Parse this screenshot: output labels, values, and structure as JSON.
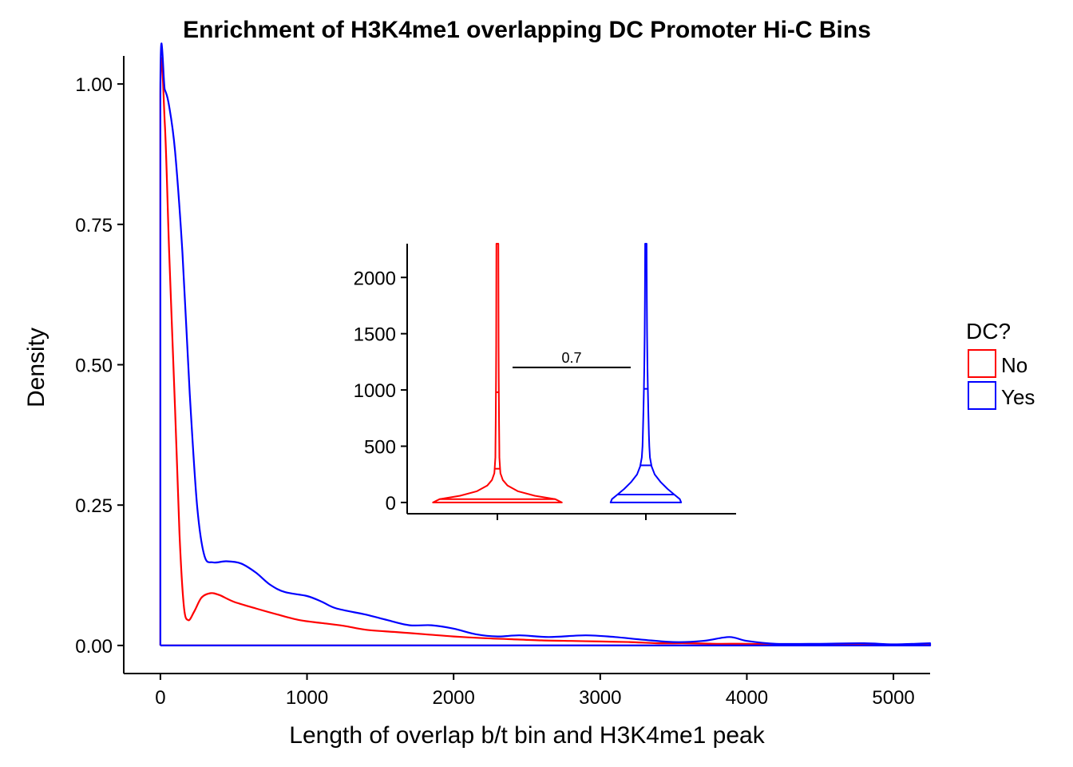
{
  "chart_data": {
    "type": "density",
    "title": "Enrichment of H3K4me1 overlapping DC Promoter Hi-C Bins",
    "xlabel": "Length of overlap b/t bin and H3K4me1 peak",
    "ylabel": "Density",
    "xlim": [
      -250,
      5250
    ],
    "ylim": [
      -0.05,
      1.05
    ],
    "x_ticks": [
      "0",
      "1000",
      "2000",
      "3000",
      "4000",
      "5000"
    ],
    "y_ticks": [
      "0.00",
      "0.25",
      "0.50",
      "0.75",
      "1.00"
    ],
    "grid": false,
    "legend": {
      "title": "DC?",
      "position": "right",
      "entries": [
        {
          "label": "No",
          "color": "#ff0000"
        },
        {
          "label": "Yes",
          "color": "#0000ff"
        }
      ]
    },
    "series": [
      {
        "name": "No",
        "color": "#ff0000",
        "points": [
          [
            0,
            0
          ],
          [
            0,
            0.98
          ],
          [
            30,
            0.93
          ],
          [
            60,
            0.7
          ],
          [
            100,
            0.42
          ],
          [
            130,
            0.2
          ],
          [
            160,
            0.07
          ],
          [
            190,
            0.045
          ],
          [
            230,
            0.06
          ],
          [
            280,
            0.085
          ],
          [
            340,
            0.093
          ],
          [
            400,
            0.09
          ],
          [
            500,
            0.078
          ],
          [
            650,
            0.066
          ],
          [
            800,
            0.055
          ],
          [
            950,
            0.045
          ],
          [
            1100,
            0.04
          ],
          [
            1250,
            0.035
          ],
          [
            1400,
            0.028
          ],
          [
            1600,
            0.024
          ],
          [
            1800,
            0.02
          ],
          [
            2000,
            0.016
          ],
          [
            2200,
            0.013
          ],
          [
            2400,
            0.011
          ],
          [
            2600,
            0.009
          ],
          [
            2800,
            0.008
          ],
          [
            3000,
            0.007
          ],
          [
            3200,
            0.006
          ],
          [
            3400,
            0.004
          ],
          [
            3600,
            0.004
          ],
          [
            3800,
            0.003
          ],
          [
            4000,
            0.003
          ],
          [
            4200,
            0.002
          ],
          [
            4600,
            0.002
          ],
          [
            5000,
            0.001
          ],
          [
            5250,
            0.001
          ]
        ]
      },
      {
        "name": "Yes",
        "color": "#0000ff",
        "points": [
          [
            0,
            0
          ],
          [
            0,
            1.0
          ],
          [
            30,
            0.99
          ],
          [
            60,
            0.96
          ],
          [
            100,
            0.88
          ],
          [
            150,
            0.7
          ],
          [
            200,
            0.45
          ],
          [
            250,
            0.25
          ],
          [
            300,
            0.16
          ],
          [
            360,
            0.148
          ],
          [
            450,
            0.15
          ],
          [
            550,
            0.146
          ],
          [
            650,
            0.13
          ],
          [
            750,
            0.108
          ],
          [
            850,
            0.095
          ],
          [
            1000,
            0.088
          ],
          [
            1100,
            0.078
          ],
          [
            1200,
            0.066
          ],
          [
            1400,
            0.055
          ],
          [
            1550,
            0.045
          ],
          [
            1700,
            0.036
          ],
          [
            1850,
            0.036
          ],
          [
            2000,
            0.03
          ],
          [
            2150,
            0.02
          ],
          [
            2300,
            0.016
          ],
          [
            2450,
            0.018
          ],
          [
            2650,
            0.015
          ],
          [
            2900,
            0.018
          ],
          [
            3100,
            0.015
          ],
          [
            3300,
            0.01
          ],
          [
            3500,
            0.006
          ],
          [
            3700,
            0.008
          ],
          [
            3880,
            0.015
          ],
          [
            4000,
            0.008
          ],
          [
            4200,
            0.003
          ],
          [
            4500,
            0.003
          ],
          [
            4800,
            0.004
          ],
          [
            5000,
            0.002
          ],
          [
            5250,
            0.004
          ]
        ]
      }
    ],
    "inset": {
      "type": "violin",
      "ylim": [
        -100,
        2300
      ],
      "y_ticks": [
        "0",
        "500",
        "1000",
        "1500",
        "2000"
      ],
      "groups": [
        {
          "name": "No",
          "color": "#ff0000",
          "quantiles": [
            30,
            300,
            980
          ],
          "width_profile": [
            [
              0,
              0.95
            ],
            [
              30,
              0.85
            ],
            [
              60,
              0.55
            ],
            [
              100,
              0.3
            ],
            [
              150,
              0.15
            ],
            [
              200,
              0.08
            ],
            [
              260,
              0.045
            ],
            [
              300,
              0.04
            ],
            [
              400,
              0.03
            ],
            [
              500,
              0.028
            ],
            [
              700,
              0.025
            ],
            [
              900,
              0.022
            ],
            [
              1100,
              0.02
            ],
            [
              1400,
              0.018
            ],
            [
              1700,
              0.016
            ],
            [
              2000,
              0.015
            ],
            [
              2300,
              0.014
            ]
          ]
        },
        {
          "name": "Yes",
          "color": "#0000ff",
          "quantiles": [
            70,
            330,
            1010
          ],
          "width_profile": [
            [
              0,
              0.52
            ],
            [
              30,
              0.5
            ],
            [
              70,
              0.42
            ],
            [
              120,
              0.32
            ],
            [
              180,
              0.22
            ],
            [
              250,
              0.13
            ],
            [
              320,
              0.085
            ],
            [
              400,
              0.06
            ],
            [
              500,
              0.05
            ],
            [
              600,
              0.045
            ],
            [
              800,
              0.036
            ],
            [
              1000,
              0.03
            ],
            [
              1200,
              0.024
            ],
            [
              1500,
              0.018
            ],
            [
              1800,
              0.014
            ],
            [
              2100,
              0.012
            ],
            [
              2300,
              0.01
            ]
          ]
        }
      ],
      "comparison": {
        "from": "No",
        "to": "Yes",
        "label": "0.7",
        "y": 1200
      }
    }
  }
}
